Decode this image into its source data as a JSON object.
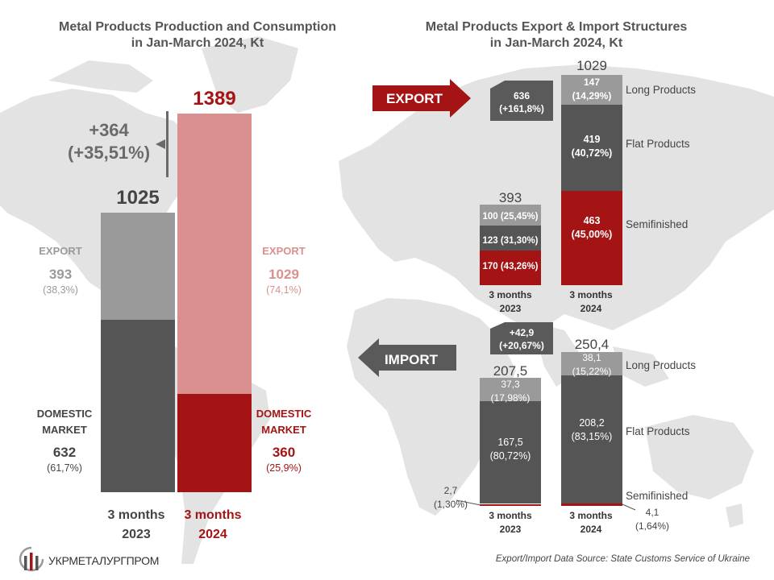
{
  "left": {
    "title_line1": "Metal Products Production and Consumption",
    "title_line2": "in Jan-March 2024, Kt",
    "change_abs": "+364",
    "change_pct": "(+35,51%)",
    "bar2023": {
      "total_label": "1025",
      "export_label": "EXPORT",
      "export_value": "393",
      "export_pct": "(38,3%)",
      "domestic_label_1": "DOMESTIC",
      "domestic_label_2": "MARKET",
      "domestic_value": "632",
      "domestic_pct": "(61,7%)",
      "cat_1": "3 months",
      "cat_2": "2023"
    },
    "bar2024": {
      "total_label": "1389",
      "export_label": "EXPORT",
      "export_value": "1029",
      "export_pct": "(74,1%)",
      "domestic_label_1": "DOMESTIC",
      "domestic_label_2": "MARKET",
      "domestic_value": "360",
      "domestic_pct": "(25,9%)",
      "cat_1": "3 months",
      "cat_2": "2024"
    }
  },
  "right": {
    "title_line1": "Metal Products Export & Import Structures",
    "title_line2": "in Jan-March 2024, Kt",
    "export_arrow": "EXPORT",
    "import_arrow": "IMPORT",
    "export_change_1": "636",
    "export_change_2": "(+161,8%)",
    "import_change_1": "+42,9",
    "import_change_2": "(+20,67%)",
    "export_2023_total": "393",
    "export_2024_total": "1029",
    "import_2023_total": "207,5",
    "import_2024_total": "250,4",
    "exp23": {
      "long": "100 (25,45%)",
      "flat": "123 (31,30%)",
      "semi": "170 (43,26%)"
    },
    "exp24": {
      "long_v": "147",
      "long_p": "(14,29%)",
      "flat_v": "419",
      "flat_p": "(40,72%)",
      "semi_v": "463",
      "semi_p": "(45,00%)"
    },
    "imp23": {
      "long_v": "37,3",
      "long_p": "(17,98%)",
      "flat_v": "167,5",
      "flat_p": "(80,72%)",
      "semi_v": "2,7",
      "semi_p": "(1,30%)"
    },
    "imp24": {
      "long_v": "38,1",
      "long_p": "(15,22%)",
      "flat_v": "208,2",
      "flat_p": "(83,15%)",
      "semi_v": "4,1",
      "semi_p": "(1,64%)"
    },
    "legend_long": "Long Products",
    "legend_flat": "Flat Products",
    "legend_semi": "Semifinished",
    "cat_1": "3 months",
    "cat_2023": "2023",
    "cat_2024": "2024"
  },
  "footer": {
    "logo_text": "УКРМЕТАЛУРГПРОМ",
    "source": "Export/Import Data Source: State Customs Service of Ukraine"
  },
  "colors": {
    "dark_gray": "#555555",
    "light_gray": "#9a9a9a",
    "red": "#a51414",
    "pink": "#d9908f",
    "map": "#e2e2e2"
  },
  "chart_data": [
    {
      "type": "bar",
      "title": "Metal Products Production and Consumption in Jan-March 2024, Kt",
      "categories": [
        "3 months 2023",
        "3 months 2024"
      ],
      "series": [
        {
          "name": "DOMESTIC MARKET",
          "values": [
            632,
            360
          ]
        },
        {
          "name": "EXPORT",
          "values": [
            393,
            1029
          ]
        }
      ],
      "totals": [
        1025,
        1389
      ],
      "stacked": true
    },
    {
      "type": "bar",
      "title": "Metal Products Export & Import Structures in Jan-March 2024, Kt",
      "subtitle": "EXPORT",
      "categories": [
        "3 months 2023",
        "3 months 2024"
      ],
      "series": [
        {
          "name": "Semifinished",
          "values": [
            170,
            463
          ]
        },
        {
          "name": "Flat Products",
          "values": [
            123,
            419
          ]
        },
        {
          "name": "Long Products",
          "values": [
            100,
            147
          ]
        }
      ],
      "totals": [
        393,
        1029
      ],
      "stacked": true
    },
    {
      "type": "bar",
      "subtitle": "IMPORT",
      "categories": [
        "3 months 2023",
        "3 months 2024"
      ],
      "series": [
        {
          "name": "Semifinished",
          "values": [
            2.7,
            4.1
          ]
        },
        {
          "name": "Flat Products",
          "values": [
            167.5,
            208.2
          ]
        },
        {
          "name": "Long Products",
          "values": [
            37.3,
            38.1
          ]
        }
      ],
      "totals": [
        207.5,
        250.4
      ],
      "stacked": true
    }
  ]
}
